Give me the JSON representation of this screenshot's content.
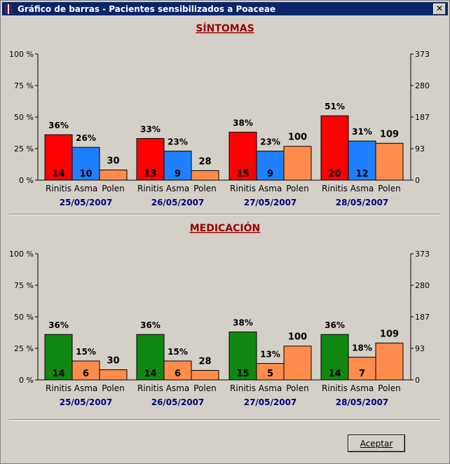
{
  "window": {
    "title": "Gráfico de barras - Pacientes sensibilizados a Poaceae",
    "close_glyph": "✕"
  },
  "colors": {
    "rinitis_sintomas": "#ff0000",
    "asma": "#1e7fff",
    "polen": "#ff8c4c",
    "rinitis_medicacion": "#118811",
    "title": "#990000",
    "date": "#000080"
  },
  "buttons": {
    "accept_label": "Aceptar"
  },
  "chart_data": [
    {
      "type": "bar",
      "title": "SÍNTOMAS",
      "categories": [
        "25/05/2007",
        "26/05/2007",
        "27/05/2007",
        "28/05/2007"
      ],
      "bar_labels": [
        "Rinitis",
        "Asma",
        "Polen"
      ],
      "left_axis": {
        "ticks": [
          "100 %",
          "75 %",
          "50 %",
          "25 %",
          "0 %"
        ],
        "range": [
          0,
          100
        ]
      },
      "right_axis": {
        "ticks": [
          "373",
          "280",
          "187",
          "93",
          "0"
        ],
        "range": [
          0,
          373
        ]
      },
      "series": [
        {
          "name": "Rinitis",
          "color_key": "rinitis_sintomas",
          "percent": [
            36,
            33,
            38,
            51
          ],
          "count": [
            14,
            13,
            15,
            20
          ]
        },
        {
          "name": "Asma",
          "color_key": "asma",
          "percent": [
            26,
            23,
            23,
            31
          ],
          "count": [
            10,
            9,
            9,
            12
          ]
        },
        {
          "name": "Polen",
          "color_key": "polen",
          "value": [
            30,
            28,
            100,
            109
          ]
        }
      ]
    },
    {
      "type": "bar",
      "title": "MEDICACIÓN",
      "categories": [
        "25/05/2007",
        "26/05/2007",
        "27/05/2007",
        "28/05/2007"
      ],
      "bar_labels": [
        "Rinitis",
        "Asma",
        "Polen"
      ],
      "left_axis": {
        "ticks": [
          "100 %",
          "75 %",
          "50 %",
          "25 %",
          "0 %"
        ],
        "range": [
          0,
          100
        ]
      },
      "right_axis": {
        "ticks": [
          "373",
          "280",
          "187",
          "93",
          "0"
        ],
        "range": [
          0,
          373
        ]
      },
      "series": [
        {
          "name": "Rinitis",
          "color_key": "rinitis_medicacion",
          "percent": [
            36,
            36,
            38,
            36
          ],
          "count": [
            14,
            14,
            15,
            14
          ]
        },
        {
          "name": "Asma",
          "color_key": "polen",
          "percent": [
            15,
            15,
            13,
            18
          ],
          "count": [
            6,
            6,
            5,
            7
          ]
        },
        {
          "name": "Polen",
          "color_key": "polen",
          "value": [
            30,
            28,
            100,
            109
          ]
        }
      ]
    }
  ]
}
